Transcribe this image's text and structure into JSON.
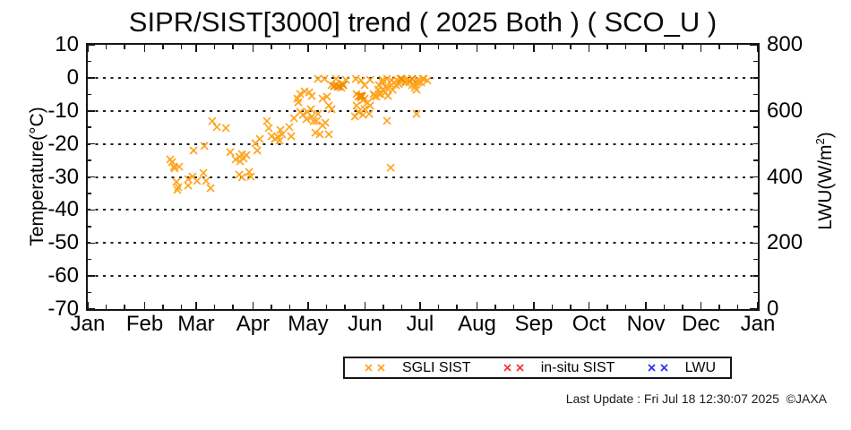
{
  "title": "SIPR/SIST[3000] trend ( 2025 Both ) ( SCO_U )",
  "footer": "Last Update : Fri Jul 18 12:30:07 2025  ©JAXA",
  "chart_data": {
    "type": "scatter",
    "title": "SIPR/SIST[3000] trend ( 2025 Both ) ( SCO_U )",
    "grid": "dotted horizontal lines every 10 C from 0 to -60",
    "x_axis": {
      "tick_labels": [
        "Jan",
        "Feb",
        "Mar",
        "Apr",
        "May",
        "Jun",
        "Jul",
        "Aug",
        "Sep",
        "Oct",
        "Nov",
        "Dec",
        "Jan"
      ],
      "month_start_days": [
        0,
        31,
        59,
        90,
        120,
        151,
        181,
        212,
        243,
        273,
        304,
        334,
        365
      ],
      "minor_tick_offsets_days": [
        10,
        20
      ],
      "range_days": [
        0,
        365
      ]
    },
    "y_left": {
      "label": "Temperature(°C)",
      "ticks": [
        10,
        0,
        -10,
        -20,
        -30,
        -40,
        -50,
        -60,
        -70
      ],
      "min": -70,
      "max": 10,
      "major_step": 10,
      "minor_step": 5
    },
    "y_right": {
      "label_prefix": "LWU(W/m",
      "label_sup": "2",
      "label_suffix": ")",
      "ticks": [
        800,
        600,
        400,
        200,
        0
      ],
      "min": 0,
      "max": 800,
      "major_step": 200,
      "minor_step": 50
    },
    "legend_position": "bottom-center-right",
    "series": [
      {
        "name": "SGLI SIST",
        "color": "#FFA41E",
        "dark_color": "#EE8D05",
        "marker": "x",
        "x_unit": "day_of_year",
        "points": [
          [
            44.9,
            -24.7
          ],
          [
            45.9,
            -25.5
          ],
          [
            46.9,
            -26.9
          ],
          [
            48.3,
            -31.5
          ],
          [
            49.3,
            -33.1
          ],
          [
            48.8,
            -33.9
          ],
          [
            49.8,
            -26.9
          ],
          [
            47.3,
            -27.4
          ],
          [
            54.7,
            -30.7
          ],
          [
            57.1,
            -29.9
          ],
          [
            59.5,
            -31.2
          ],
          [
            63.0,
            -28.8
          ],
          [
            64.4,
            -31.2
          ],
          [
            66.9,
            -33.4
          ],
          [
            54.7,
            -32.6
          ],
          [
            57.6,
            -22.0
          ],
          [
            63.5,
            -20.6
          ],
          [
            67.8,
            -13.1
          ],
          [
            70.3,
            -14.9
          ],
          [
            75.2,
            -15.2
          ],
          [
            77.6,
            -22.5
          ],
          [
            80.5,
            -24.7
          ],
          [
            82.5,
            -23.9
          ],
          [
            83.0,
            -25.3
          ],
          [
            84.0,
            -23.1
          ],
          [
            84.9,
            -24.4
          ],
          [
            86.4,
            -23.4
          ],
          [
            82.5,
            -29.3
          ],
          [
            84.0,
            -30.1
          ],
          [
            87.9,
            -28.5
          ],
          [
            88.8,
            -29.9
          ],
          [
            91.3,
            -19.8
          ],
          [
            92.3,
            -22.0
          ],
          [
            93.7,
            -18.5
          ],
          [
            97.6,
            -13.1
          ],
          [
            98.6,
            -15.2
          ],
          [
            100.1,
            -17.7
          ],
          [
            102.0,
            -18.5
          ],
          [
            103.5,
            -17.9
          ],
          [
            104.5,
            -19.0
          ],
          [
            104.9,
            -15.8
          ],
          [
            105.9,
            -17.1
          ],
          [
            109.8,
            -14.9
          ],
          [
            110.8,
            -17.7
          ],
          [
            112.3,
            -12.2
          ],
          [
            114.2,
            -6.3
          ],
          [
            114.7,
            -7.4
          ],
          [
            115.7,
            -4.9
          ],
          [
            115.7,
            -10.3
          ],
          [
            117.2,
            -11.2
          ],
          [
            118.1,
            -4.1
          ],
          [
            119.1,
            -12.5
          ],
          [
            119.6,
            -10.3
          ],
          [
            120.6,
            -4.4
          ],
          [
            121.5,
            -9.5
          ],
          [
            122.0,
            -5.5
          ],
          [
            122.0,
            -11.7
          ],
          [
            123.0,
            -13.1
          ],
          [
            124.0,
            -16.6
          ],
          [
            124.5,
            -13.1
          ],
          [
            125.4,
            -10.9
          ],
          [
            126.4,
            -17.1
          ],
          [
            127.9,
            -6.3
          ],
          [
            127.9,
            -14.4
          ],
          [
            129.4,
            -13.6
          ],
          [
            130.3,
            -5.7
          ],
          [
            131.3,
            -8.4
          ],
          [
            131.3,
            -17.1
          ],
          [
            132.8,
            -9.5
          ],
          [
            125.4,
            -0.3
          ],
          [
            128.9,
            -0.3
          ],
          [
            132.8,
            -2.2
          ],
          [
            134.2,
            -2.5
          ],
          [
            135.2,
            -0.3
          ],
          [
            135.2,
            -2.2
          ],
          [
            136.2,
            -2.7
          ],
          [
            137.2,
            -2.5
          ],
          [
            138.1,
            -3.0
          ],
          [
            139.1,
            -2.2
          ],
          [
            138.6,
            -1.7
          ],
          [
            140.6,
            -0.6
          ],
          [
            145.5,
            -11.7
          ],
          [
            146.4,
            -4.9
          ],
          [
            146.4,
            -8.4
          ],
          [
            147.4,
            -5.7
          ],
          [
            147.4,
            -10.3
          ],
          [
            148.4,
            -5.5
          ],
          [
            148.9,
            -6.0
          ],
          [
            149.4,
            -5.5
          ],
          [
            149.9,
            -6.8
          ],
          [
            149.9,
            -11.2
          ],
          [
            150.8,
            -6.3
          ],
          [
            150.8,
            -9.5
          ],
          [
            152.3,
            -7.6
          ],
          [
            153.3,
            -10.9
          ],
          [
            153.8,
            -8.4
          ],
          [
            155.7,
            -4.9
          ],
          [
            156.2,
            -5.5
          ],
          [
            157.2,
            -5.7
          ],
          [
            158.6,
            -4.9
          ],
          [
            158.2,
            -3.6
          ],
          [
            158.6,
            -2.2
          ],
          [
            159.6,
            -4.9
          ],
          [
            160.6,
            -0.6
          ],
          [
            160.6,
            -3.6
          ],
          [
            162.1,
            -2.7
          ],
          [
            162.1,
            -4.4
          ],
          [
            163.0,
            -3.0
          ],
          [
            163.5,
            -5.5
          ],
          [
            165.5,
            -2.2
          ],
          [
            166.0,
            -3.6
          ],
          [
            166.9,
            -1.4
          ],
          [
            168.4,
            -0.6
          ],
          [
            169.4,
            -1.9
          ],
          [
            170.4,
            -0.3
          ],
          [
            170.8,
            -0.3
          ],
          [
            171.8,
            -0.8
          ],
          [
            172.8,
            -1.1
          ],
          [
            173.3,
            -1.4
          ],
          [
            174.3,
            -0.6
          ],
          [
            175.2,
            -1.1
          ],
          [
            175.2,
            -1.4
          ],
          [
            176.7,
            -0.3
          ],
          [
            176.7,
            -2.2
          ],
          [
            178.2,
            -2.2
          ],
          [
            178.2,
            -3.0
          ],
          [
            179.1,
            -3.6
          ],
          [
            180.1,
            -0.6
          ],
          [
            181.6,
            -1.4
          ],
          [
            183.0,
            -0.3
          ],
          [
            185.0,
            -0.8
          ],
          [
            146.0,
            -0.3
          ],
          [
            148.9,
            -0.8
          ],
          [
            150.8,
            -2.2
          ],
          [
            153.8,
            -0.6
          ],
          [
            160.6,
            -1.4
          ],
          [
            163.0,
            -0.3
          ],
          [
            165.5,
            -0.8
          ],
          [
            167.9,
            -2.2
          ],
          [
            171.3,
            -0.8
          ],
          [
            180.1,
            -1.4
          ],
          [
            182.5,
            -0.3
          ],
          [
            165.0,
            -27.2
          ],
          [
            163.0,
            -13.0
          ],
          [
            179.1,
            -10.9
          ]
        ],
        "dark_points": [
          [
            134.2,
            -2.5
          ],
          [
            136.2,
            -2.7
          ],
          [
            137.2,
            -2.5
          ],
          [
            139.1,
            -2.2
          ],
          [
            148.4,
            -5.5
          ],
          [
            149.4,
            -5.5
          ],
          [
            170.8,
            -0.3
          ],
          [
            176.7,
            -0.3
          ]
        ]
      },
      {
        "name": "in-situ SIST",
        "color": "#FF2B2B",
        "dark_color": "#FF2B2B",
        "marker": "x",
        "x_unit": "day_of_year",
        "points": [],
        "dark_points": []
      },
      {
        "name": "LWU",
        "color": "#2B2BFF",
        "dark_color": "#2B2BFF",
        "marker": "x",
        "x_unit": "day_of_year",
        "points": [],
        "dark_points": [],
        "axis": "right"
      }
    ]
  }
}
